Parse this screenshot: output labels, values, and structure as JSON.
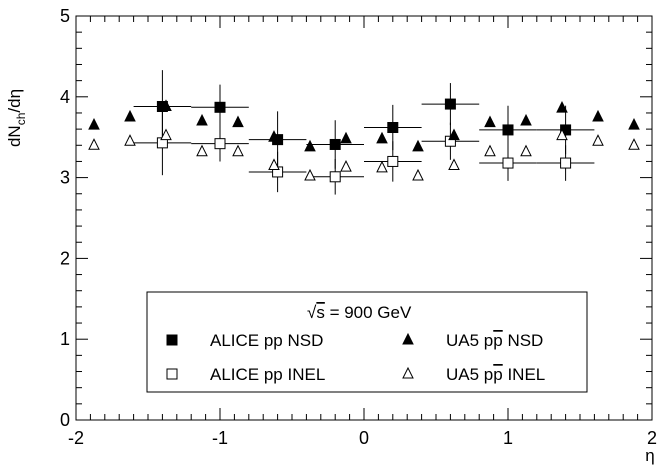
{
  "chart_data": {
    "type": "scatter",
    "xlabel": "η",
    "ylabel": "dN_ch/dη",
    "xlim": [
      -2,
      2
    ],
    "ylim": [
      0,
      5
    ],
    "x_ticks": [
      "-2",
      "-1",
      "0",
      "1",
      "2"
    ],
    "y_ticks": [
      "0",
      "1",
      "2",
      "3",
      "4",
      "5"
    ],
    "grid": false,
    "legend": {
      "position": "bottom-center",
      "header": "√s = 900 GeV",
      "entries": [
        {
          "series": "alice_nsd",
          "label": "ALICE pp NSD"
        },
        {
          "series": "ua5_nsd",
          "label": "UA5 pp̄ NSD"
        },
        {
          "series": "alice_inel",
          "label": "ALICE pp INEL"
        },
        {
          "series": "ua5_inel",
          "label": "UA5 pp̄ INEL"
        }
      ]
    },
    "series": [
      {
        "key": "alice_nsd",
        "name": "ALICE pp NSD",
        "marker": "filled-square",
        "x": [
          -1.4,
          -1.0,
          -0.6,
          -0.2,
          0.2,
          0.6,
          1.0,
          1.4
        ],
        "y": [
          3.88,
          3.87,
          3.47,
          3.41,
          3.62,
          3.91,
          3.59,
          3.59
        ],
        "xerr": [
          0.2,
          0.2,
          0.2,
          0.2,
          0.2,
          0.2,
          0.2,
          0.2
        ],
        "yerr": [
          0.45,
          0.28,
          0.35,
          0.3,
          0.28,
          0.26,
          0.3,
          0.3
        ]
      },
      {
        "key": "alice_inel",
        "name": "ALICE pp INEL",
        "marker": "open-square",
        "x": [
          -1.4,
          -1.0,
          -0.6,
          -0.2,
          0.2,
          0.6,
          1.0,
          1.4
        ],
        "y": [
          3.43,
          3.42,
          3.07,
          3.01,
          3.2,
          3.45,
          3.18,
          3.18
        ],
        "xerr": [
          0.2,
          0.2,
          0.2,
          0.2,
          0.2,
          0.2,
          0.2,
          0.2
        ],
        "yerr": [
          0.4,
          0.22,
          0.25,
          0.22,
          0.25,
          0.23,
          0.22,
          0.22
        ]
      },
      {
        "key": "ua5_nsd",
        "name": "UA5 pp̄ NSD",
        "marker": "filled-triangle",
        "x": [
          -1.875,
          -1.625,
          -1.375,
          -1.125,
          -0.875,
          -0.625,
          -0.375,
          -0.125,
          0.125,
          0.375,
          0.625,
          0.875,
          1.125,
          1.375,
          1.625,
          1.875
        ],
        "y": [
          3.65,
          3.75,
          3.88,
          3.7,
          3.68,
          3.5,
          3.38,
          3.48,
          3.48,
          3.38,
          3.52,
          3.68,
          3.7,
          3.86,
          3.75,
          3.65
        ]
      },
      {
        "key": "ua5_inel",
        "name": "UA5 pp̄ INEL",
        "marker": "open-triangle",
        "x": [
          -1.875,
          -1.625,
          -1.375,
          -1.125,
          -0.875,
          -0.625,
          -0.375,
          -0.125,
          0.125,
          0.375,
          0.625,
          0.875,
          1.125,
          1.375,
          1.625,
          1.875
        ],
        "y": [
          3.4,
          3.45,
          3.52,
          3.32,
          3.32,
          3.15,
          3.02,
          3.13,
          3.12,
          3.02,
          3.15,
          3.32,
          3.32,
          3.52,
          3.45,
          3.4
        ]
      }
    ]
  }
}
